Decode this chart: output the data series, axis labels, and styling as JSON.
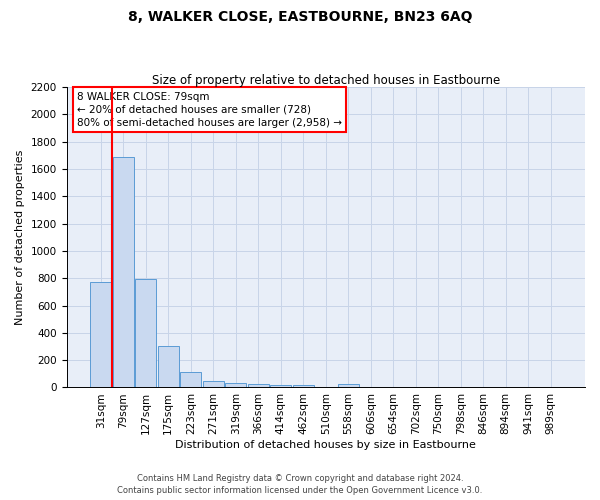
{
  "title": "8, WALKER CLOSE, EASTBOURNE, BN23 6AQ",
  "subtitle": "Size of property relative to detached houses in Eastbourne",
  "xlabel": "Distribution of detached houses by size in Eastbourne",
  "ylabel": "Number of detached properties",
  "categories": [
    "31sqm",
    "79sqm",
    "127sqm",
    "175sqm",
    "223sqm",
    "271sqm",
    "319sqm",
    "366sqm",
    "414sqm",
    "462sqm",
    "510sqm",
    "558sqm",
    "606sqm",
    "654sqm",
    "702sqm",
    "750sqm",
    "798sqm",
    "846sqm",
    "894sqm",
    "941sqm",
    "989sqm"
  ],
  "bar_values": [
    775,
    1690,
    795,
    300,
    110,
    45,
    30,
    25,
    20,
    20,
    0,
    25,
    0,
    0,
    0,
    0,
    0,
    0,
    0,
    0,
    0
  ],
  "bar_color": "#c9d9f0",
  "bar_edge_color": "#5b9bd5",
  "vline_x": 0.5,
  "vline_color": "red",
  "ylim": [
    0,
    2200
  ],
  "yticks": [
    0,
    200,
    400,
    600,
    800,
    1000,
    1200,
    1400,
    1600,
    1800,
    2000,
    2200
  ],
  "annotation_text": "8 WALKER CLOSE: 79sqm\n← 20% of detached houses are smaller (728)\n80% of semi-detached houses are larger (2,958) →",
  "annotation_box_color": "white",
  "annotation_box_edge": "red",
  "footer_line1": "Contains HM Land Registry data © Crown copyright and database right 2024.",
  "footer_line2": "Contains public sector information licensed under the Open Government Licence v3.0.",
  "grid_color": "#c8d4e8",
  "bg_color": "#e8eef8",
  "title_fontsize": 10,
  "subtitle_fontsize": 8.5,
  "ylabel_fontsize": 8,
  "xlabel_fontsize": 8,
  "tick_fontsize": 7.5,
  "annotation_fontsize": 7.5,
  "footer_fontsize": 6
}
